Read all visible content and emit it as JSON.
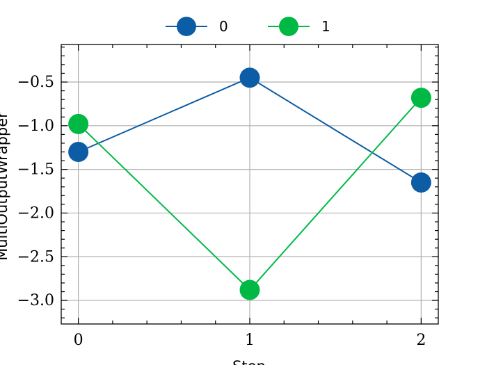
{
  "chart_data": {
    "type": "line",
    "x": [
      0,
      1,
      2
    ],
    "series": [
      {
        "name": "0",
        "values": [
          -1.3,
          -0.45,
          -1.65
        ],
        "color": "#0C5DA5"
      },
      {
        "name": "1",
        "values": [
          -0.98,
          -2.88,
          -0.68
        ],
        "color": "#00B945"
      }
    ],
    "xlabel": "Step",
    "ylabel": "MultiOutputWrapper",
    "xlim": [
      -0.1,
      2.1
    ],
    "ylim": [
      -3.27,
      -0.07
    ],
    "xticks": [
      "0",
      "1",
      "2"
    ],
    "yticks": [
      "−0.5",
      "−1.0",
      "−1.5",
      "−2.0",
      "−2.5",
      "−3.0"
    ],
    "grid": true,
    "legend_position": "top-center",
    "axis_color": "#000000",
    "grid_color": "#b0b0b0"
  }
}
